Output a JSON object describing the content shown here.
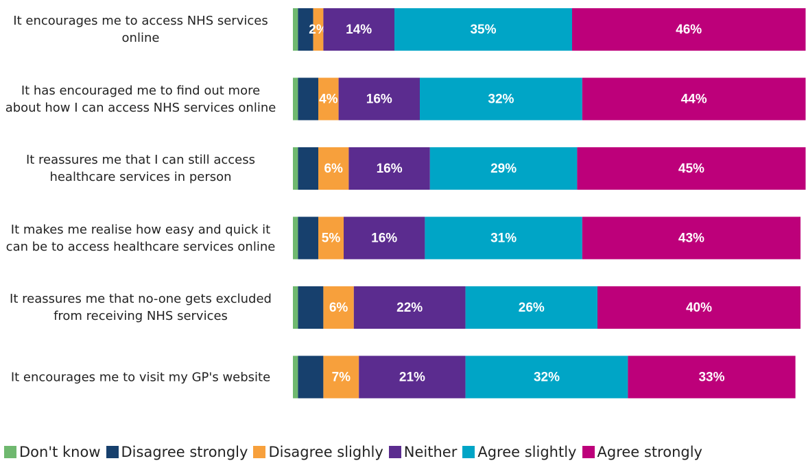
{
  "chart_data": {
    "type": "stacked-bar-horizontal",
    "categories": [
      "It encourages me to access NHS services online",
      "It has encouraged me to find out more about how I can access NHS services online",
      "It reassures me that I can still access healthcare services in person",
      "It makes me realise how easy and quick it can be to access healthcare services online",
      "It reassures me that no-one gets excluded from receiving NHS services",
      "It encourages me to visit my GP's website"
    ],
    "series": [
      {
        "name": "Don't know",
        "color": "#6fb86f",
        "values": [
          1,
          1,
          1,
          1,
          1,
          1
        ],
        "value_labels": [
          null,
          null,
          null,
          null,
          null,
          null
        ]
      },
      {
        "name": "Disagree strongly",
        "color": "#17406d",
        "values": [
          3,
          4,
          4,
          4,
          5,
          5
        ],
        "value_labels": [
          null,
          null,
          null,
          null,
          null,
          null
        ]
      },
      {
        "name": "Disagree slighly",
        "color": "#f7a03c",
        "values": [
          2,
          4,
          6,
          5,
          6,
          7
        ],
        "value_labels": [
          "2%",
          "4%",
          "6%",
          "5%",
          "6%",
          "7%"
        ]
      },
      {
        "name": "Neither",
        "color": "#5b2c8f",
        "values": [
          14,
          16,
          16,
          16,
          22,
          21
        ],
        "value_labels": [
          "14%",
          "16%",
          "16%",
          "16%",
          "22%",
          "21%"
        ]
      },
      {
        "name": "Agree slightly",
        "color": "#00a5c6",
        "values": [
          35,
          32,
          29,
          31,
          26,
          32
        ],
        "value_labels": [
          "35%",
          "32%",
          "29%",
          "31%",
          "26%",
          "32%"
        ]
      },
      {
        "name": "Agree strongly",
        "color": "#bd007a",
        "values": [
          46,
          44,
          45,
          43,
          40,
          33
        ],
        "value_labels": [
          "46%",
          "44%",
          "45%",
          "43%",
          "40%",
          "33%"
        ]
      }
    ]
  }
}
